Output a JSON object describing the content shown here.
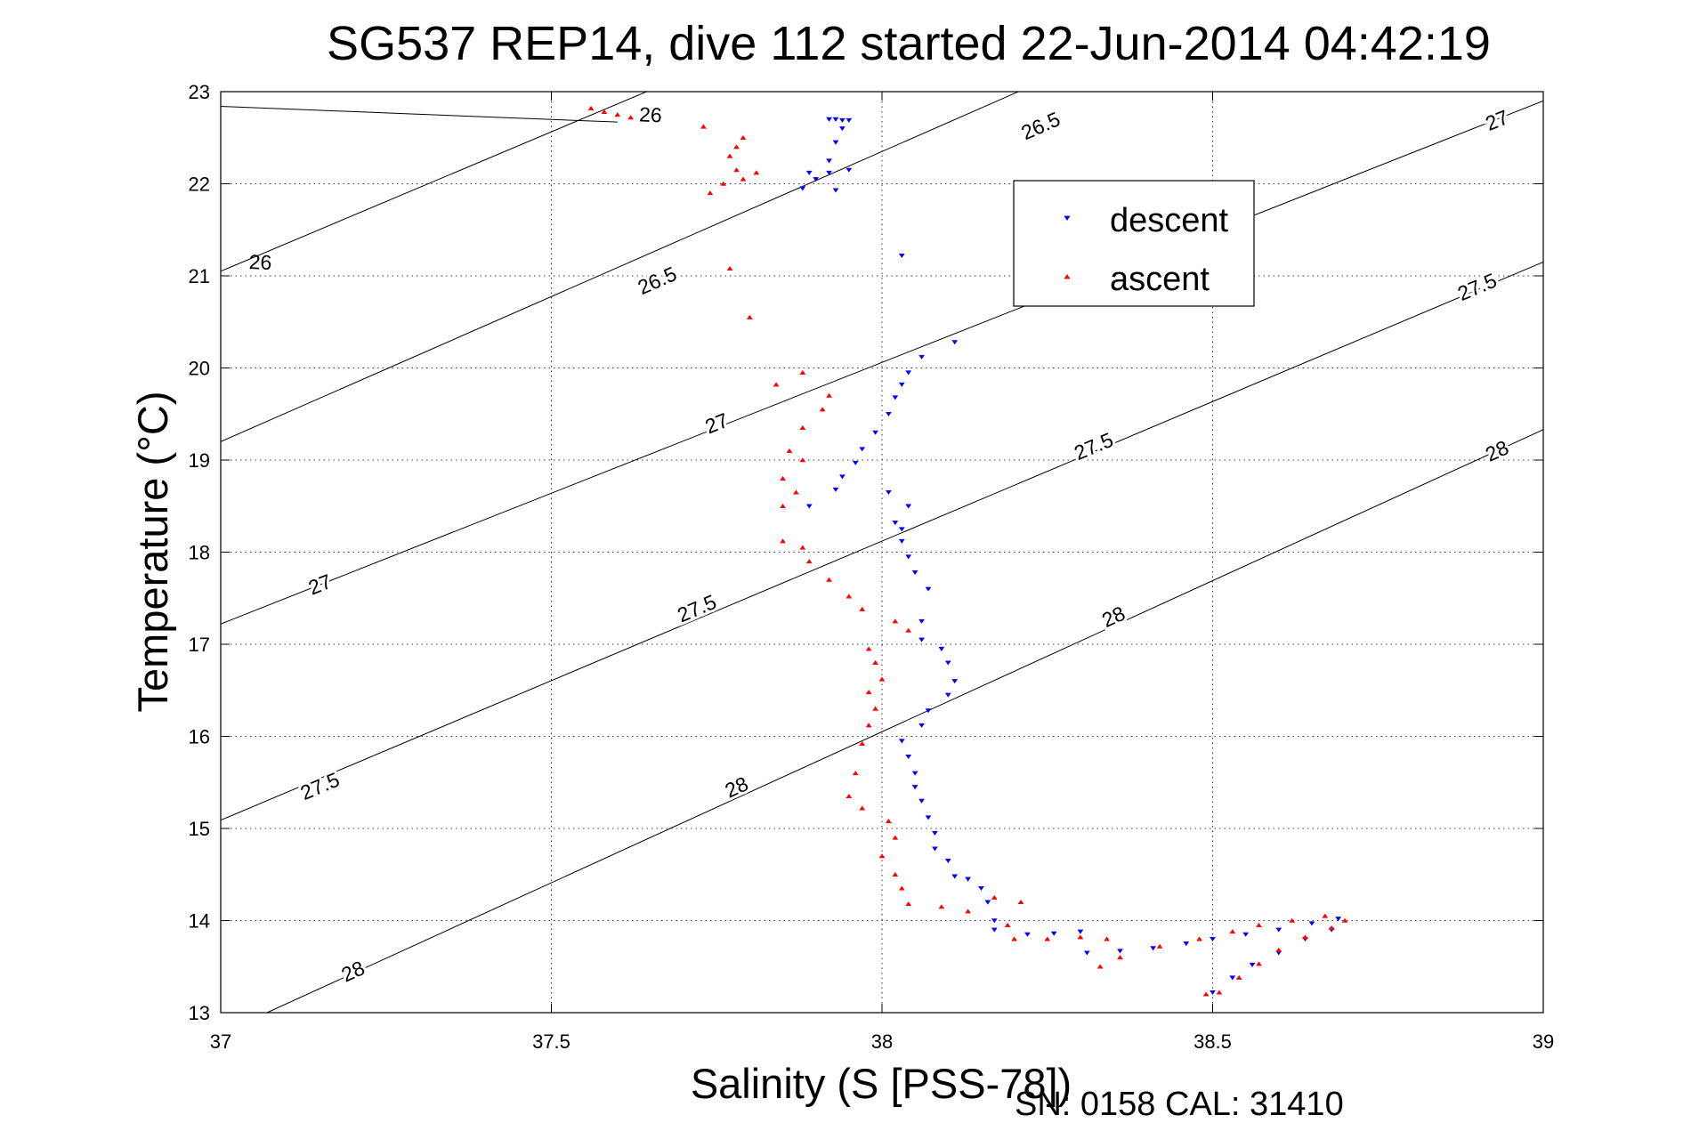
{
  "chart_data": {
    "type": "scatter",
    "title": "SG537 REP14, dive 112 started 22-Jun-2014 04:42:19",
    "xlabel": "Salinity (S [PSS-78])",
    "ylabel": "Temperature (°C)",
    "xlim": [
      37,
      39
    ],
    "ylim": [
      13,
      23
    ],
    "xticks": [
      37,
      37.5,
      38,
      38.5,
      39
    ],
    "xtick_labels": [
      "37",
      "37.5",
      "38",
      "38.5",
      "39"
    ],
    "yticks": [
      13,
      14,
      15,
      16,
      17,
      18,
      19,
      20,
      21,
      22,
      23
    ],
    "ytick_labels": [
      "13",
      "14",
      "15",
      "16",
      "17",
      "18",
      "19",
      "20",
      "21",
      "22",
      "23"
    ],
    "grid": true,
    "legend_position": "top-right",
    "footer": "SN: 0158  CAL: 31410",
    "contours": [
      {
        "label": "26",
        "points": [
          [
            37,
            22.84
          ],
          [
            37.6,
            22.67
          ]
        ],
        "labels_at": [
          [
            37.65,
            22.75
          ],
          [
            37.06,
            21.15
          ]
        ]
      },
      {
        "label": "26",
        "points": [
          [
            37,
            21.05
          ],
          [
            38.8,
            26.5
          ]
        ],
        "labels_at": []
      },
      {
        "label": "26.5",
        "points": [
          [
            37,
            19.2
          ],
          [
            39,
            25.5
          ]
        ],
        "labels_at": [
          [
            38.24,
            22.63
          ],
          [
            37.66,
            20.95
          ]
        ]
      },
      {
        "label": "27",
        "points": [
          [
            37,
            17.22
          ],
          [
            39,
            22.9
          ]
        ],
        "labels_at": [
          [
            38.93,
            22.69
          ],
          [
            37.75,
            19.4
          ],
          [
            37.15,
            17.65
          ]
        ]
      },
      {
        "label": "27.5",
        "points": [
          [
            37,
            15.09
          ],
          [
            39,
            21.15
          ]
        ],
        "labels_at": [
          [
            38.9,
            20.88
          ],
          [
            38.32,
            19.15
          ],
          [
            37.72,
            17.39
          ],
          [
            37.15,
            15.46
          ]
        ]
      },
      {
        "label": "28",
        "points": [
          [
            37.07,
            13
          ],
          [
            39,
            19.33
          ]
        ],
        "labels_at": [
          [
            38.93,
            19.1
          ],
          [
            38.35,
            17.3
          ],
          [
            37.78,
            15.45
          ],
          [
            37.2,
            13.45
          ]
        ]
      }
    ],
    "series": [
      {
        "name": "descent",
        "color": "#0000ff",
        "marker": "triangle-down",
        "points": [
          [
            37.92,
            22.7
          ],
          [
            37.93,
            22.7
          ],
          [
            37.94,
            22.69
          ],
          [
            37.95,
            22.69
          ],
          [
            37.94,
            22.6
          ],
          [
            37.93,
            22.45
          ],
          [
            37.92,
            22.25
          ],
          [
            37.95,
            22.15
          ],
          [
            37.92,
            22.12
          ],
          [
            37.89,
            22.12
          ],
          [
            37.9,
            22.05
          ],
          [
            37.88,
            21.95
          ],
          [
            37.93,
            21.93
          ],
          [
            38.03,
            21.22
          ],
          [
            38.11,
            20.28
          ],
          [
            38.06,
            20.12
          ],
          [
            38.04,
            19.95
          ],
          [
            38.03,
            19.82
          ],
          [
            38.02,
            19.68
          ],
          [
            38.01,
            19.5
          ],
          [
            37.99,
            19.3
          ],
          [
            37.97,
            19.12
          ],
          [
            37.96,
            18.97
          ],
          [
            37.94,
            18.82
          ],
          [
            37.93,
            18.68
          ],
          [
            37.89,
            18.5
          ],
          [
            38.01,
            18.65
          ],
          [
            38.02,
            18.32
          ],
          [
            38.03,
            18.25
          ],
          [
            38.04,
            18.5
          ],
          [
            38.03,
            18.12
          ],
          [
            38.04,
            17.95
          ],
          [
            38.05,
            17.78
          ],
          [
            38.07,
            17.6
          ],
          [
            38.06,
            17.25
          ],
          [
            38.06,
            17.05
          ],
          [
            38.09,
            16.95
          ],
          [
            38.1,
            16.8
          ],
          [
            38.11,
            16.6
          ],
          [
            38.1,
            16.45
          ],
          [
            38.07,
            16.28
          ],
          [
            38.06,
            16.12
          ],
          [
            38.03,
            15.95
          ],
          [
            38.04,
            15.78
          ],
          [
            38.05,
            15.6
          ],
          [
            38.05,
            15.45
          ],
          [
            38.06,
            15.3
          ],
          [
            38.07,
            15.12
          ],
          [
            38.08,
            14.95
          ],
          [
            38.08,
            14.78
          ],
          [
            38.1,
            14.65
          ],
          [
            38.11,
            14.48
          ],
          [
            38.13,
            14.45
          ],
          [
            38.15,
            14.35
          ],
          [
            38.16,
            14.2
          ],
          [
            38.17,
            14.0
          ],
          [
            38.17,
            13.9
          ],
          [
            38.22,
            13.85
          ],
          [
            38.26,
            13.86
          ],
          [
            38.3,
            13.88
          ],
          [
            38.31,
            13.65
          ],
          [
            38.36,
            13.67
          ],
          [
            38.41,
            13.7
          ],
          [
            38.46,
            13.75
          ],
          [
            38.5,
            13.8
          ],
          [
            38.55,
            13.85
          ],
          [
            38.6,
            13.9
          ],
          [
            38.65,
            13.97
          ],
          [
            38.69,
            14.02
          ],
          [
            38.68,
            13.9
          ],
          [
            38.64,
            13.8
          ],
          [
            38.6,
            13.65
          ],
          [
            38.56,
            13.52
          ],
          [
            38.53,
            13.38
          ],
          [
            38.5,
            13.22
          ]
        ]
      },
      {
        "name": "ascent",
        "color": "#ff0000",
        "marker": "triangle-up",
        "points": [
          [
            37.56,
            22.82
          ],
          [
            37.58,
            22.78
          ],
          [
            37.6,
            22.75
          ],
          [
            37.62,
            22.72
          ],
          [
            37.73,
            22.62
          ],
          [
            37.79,
            22.5
          ],
          [
            37.78,
            22.4
          ],
          [
            37.77,
            22.3
          ],
          [
            37.78,
            22.15
          ],
          [
            37.81,
            22.12
          ],
          [
            37.79,
            22.05
          ],
          [
            37.76,
            22.0
          ],
          [
            37.74,
            21.9
          ],
          [
            37.77,
            21.08
          ],
          [
            37.8,
            20.55
          ],
          [
            37.88,
            19.95
          ],
          [
            37.84,
            19.82
          ],
          [
            37.92,
            19.7
          ],
          [
            37.91,
            19.55
          ],
          [
            37.88,
            19.35
          ],
          [
            37.86,
            19.1
          ],
          [
            37.88,
            19.0
          ],
          [
            37.85,
            18.8
          ],
          [
            37.87,
            18.65
          ],
          [
            37.85,
            18.5
          ],
          [
            37.85,
            18.12
          ],
          [
            37.88,
            18.05
          ],
          [
            37.89,
            17.9
          ],
          [
            37.92,
            17.7
          ],
          [
            37.95,
            17.52
          ],
          [
            37.97,
            17.38
          ],
          [
            38.02,
            17.25
          ],
          [
            38.04,
            17.15
          ],
          [
            37.98,
            16.95
          ],
          [
            37.99,
            16.8
          ],
          [
            38.0,
            16.62
          ],
          [
            37.98,
            16.48
          ],
          [
            37.99,
            16.3
          ],
          [
            37.98,
            16.12
          ],
          [
            37.97,
            15.92
          ],
          [
            37.96,
            15.6
          ],
          [
            37.95,
            15.35
          ],
          [
            37.97,
            15.22
          ],
          [
            38.01,
            15.08
          ],
          [
            38.02,
            14.9
          ],
          [
            38.0,
            14.7
          ],
          [
            38.02,
            14.5
          ],
          [
            38.03,
            14.35
          ],
          [
            38.04,
            14.18
          ],
          [
            38.09,
            14.15
          ],
          [
            38.13,
            14.1
          ],
          [
            38.17,
            14.25
          ],
          [
            38.21,
            14.2
          ],
          [
            38.19,
            13.95
          ],
          [
            38.2,
            13.8
          ],
          [
            38.25,
            13.8
          ],
          [
            38.3,
            13.82
          ],
          [
            38.34,
            13.8
          ],
          [
            38.33,
            13.5
          ],
          [
            38.36,
            13.6
          ],
          [
            38.42,
            13.72
          ],
          [
            38.48,
            13.8
          ],
          [
            38.53,
            13.88
          ],
          [
            38.57,
            13.95
          ],
          [
            38.62,
            14.0
          ],
          [
            38.67,
            14.05
          ],
          [
            38.7,
            14.0
          ],
          [
            38.68,
            13.92
          ],
          [
            38.64,
            13.82
          ],
          [
            38.6,
            13.68
          ],
          [
            38.57,
            13.53
          ],
          [
            38.54,
            13.38
          ],
          [
            38.51,
            13.22
          ],
          [
            38.49,
            13.2
          ]
        ]
      }
    ]
  }
}
